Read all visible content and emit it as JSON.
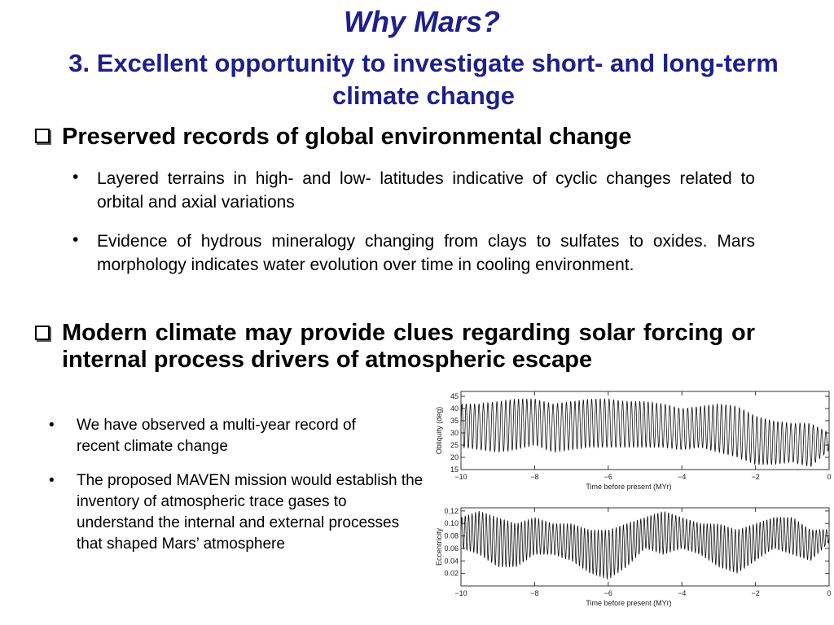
{
  "title": "Why Mars?",
  "subtitle": "3. Excellent opportunity to investigate short- and long-term climate change",
  "heading1": "Preserved records of global environmental change",
  "bullets1": [
    "Layered terrains in high- and low- latitudes indicative of cyclic changes related to orbital and axial variations",
    "Evidence of hydrous mineralogy changing from clays to sulfates to oxides.  Mars morphology indicates water evolution over time in cooling environment."
  ],
  "heading2": "Modern climate may provide clues regarding solar forcing or internal process drivers of atmospheric escape",
  "bullets2": [
    "We have observed a multi-year record of recent climate change",
    "The proposed MAVEN mission would establish the inventory of atmospheric trace gases to understand the internal and external processes that shaped Mars’ atmosphere"
  ],
  "chart_data": [
    {
      "type": "line",
      "xlabel": "Time before present (MYr)",
      "ylabel": "Obliquity (deg)",
      "xlim": [
        -10,
        0
      ],
      "ylim": [
        15,
        47
      ],
      "xticks": [
        "−10",
        "−8",
        "−6",
        "−4",
        "−2",
        "0"
      ],
      "yticks": [
        "15",
        "20",
        "25",
        "30",
        "35",
        "40",
        "45"
      ],
      "x": [
        -10.0,
        -9.5,
        -9.0,
        -8.5,
        -8.0,
        -7.5,
        -7.0,
        -6.5,
        -6.0,
        -5.5,
        -5.0,
        -4.5,
        -4.0,
        -3.5,
        -3.0,
        -2.5,
        -2.0,
        -1.5,
        -1.0,
        -0.5,
        0.0
      ],
      "series": [
        {
          "min": [
            24,
            23,
            22,
            23,
            25,
            22,
            23,
            24,
            24,
            24,
            24,
            24,
            23,
            24,
            22,
            20,
            17,
            17,
            18,
            16,
            23
          ],
          "max": [
            42,
            42,
            43,
            44,
            44,
            42,
            43,
            44,
            44,
            43,
            43,
            42,
            40,
            41,
            42,
            41,
            37,
            35,
            34,
            34,
            30
          ]
        }
      ]
    },
    {
      "type": "line",
      "xlabel": "Time before present (MYr)",
      "ylabel": "Eccentricity",
      "xlim": [
        -10,
        0
      ],
      "ylim": [
        0,
        0.125
      ],
      "xticks": [
        "−10",
        "−8",
        "−6",
        "−4",
        "−2",
        "0"
      ],
      "yticks": [
        "0.02",
        "0.04",
        "0.06",
        "0.08",
        "0.10",
        "0.12"
      ],
      "x": [
        -10.0,
        -9.5,
        -9.0,
        -8.5,
        -8.0,
        -7.5,
        -7.0,
        -6.5,
        -6.0,
        -5.5,
        -5.0,
        -4.5,
        -4.0,
        -3.5,
        -3.0,
        -2.5,
        -2.0,
        -1.5,
        -1.0,
        -0.5,
        0.0
      ],
      "series": [
        {
          "min": [
            0.06,
            0.05,
            0.03,
            0.03,
            0.05,
            0.05,
            0.04,
            0.02,
            0.01,
            0.03,
            0.06,
            0.05,
            0.06,
            0.05,
            0.03,
            0.02,
            0.04,
            0.06,
            0.05,
            0.04,
            0.07
          ],
          "max": [
            0.11,
            0.12,
            0.11,
            0.1,
            0.11,
            0.1,
            0.1,
            0.09,
            0.09,
            0.1,
            0.11,
            0.12,
            0.11,
            0.1,
            0.1,
            0.09,
            0.1,
            0.11,
            0.11,
            0.09,
            0.09
          ]
        }
      ]
    }
  ]
}
